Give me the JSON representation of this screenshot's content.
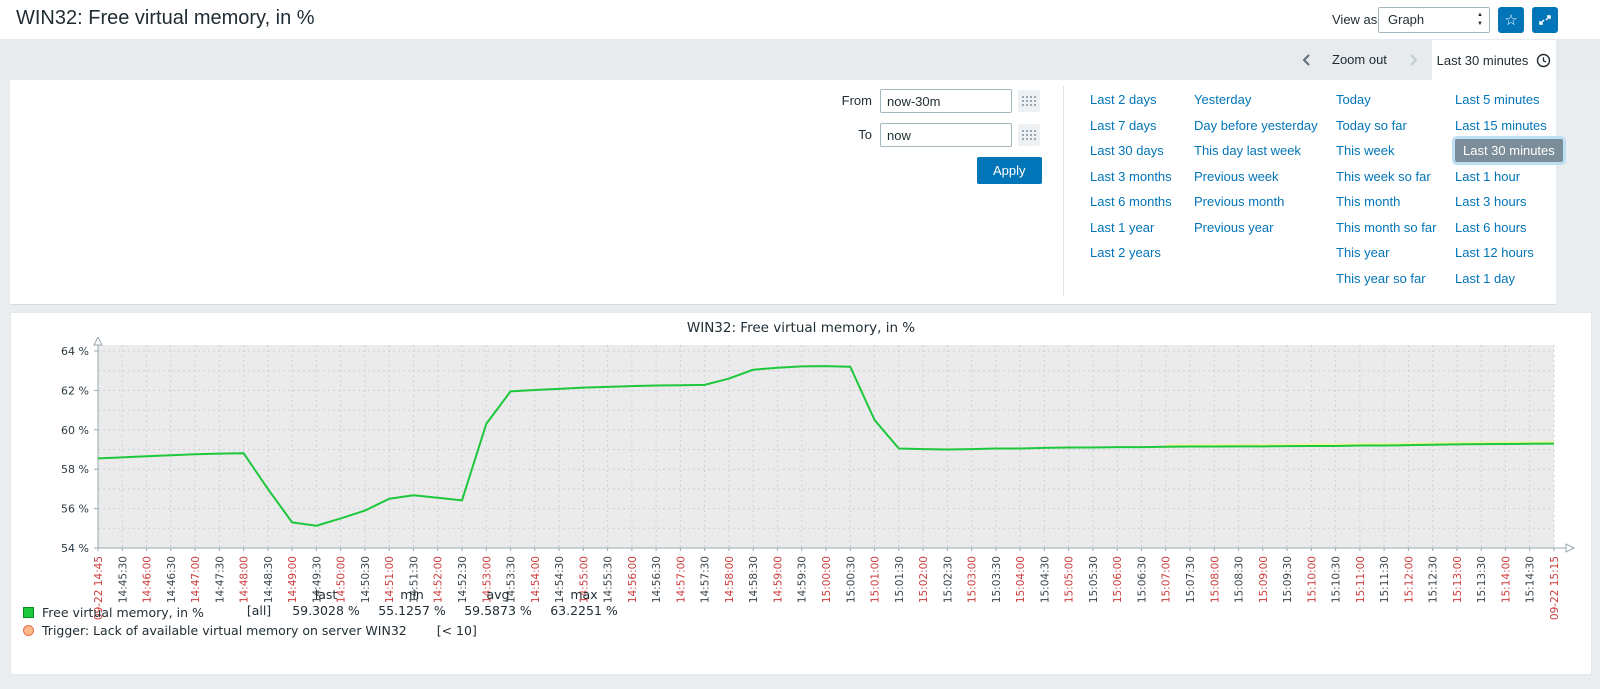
{
  "theme": {
    "accent": "#0275b8",
    "selected_range_bg": "#7a8d98"
  },
  "header": {
    "title": "WIN32: Free virtual memory, in %",
    "view_as_label": "View as",
    "view_as_value": "Graph"
  },
  "timebar": {
    "zoom_out_label": "Zoom out",
    "range_label": "Last 30 minutes"
  },
  "filter": {
    "from_label": "From",
    "from_value": "now-30m",
    "to_label": "To",
    "to_value": "now",
    "apply_label": "Apply",
    "selected": "Last 30 minutes",
    "columns": [
      [
        "Last 2 days",
        "Last 7 days",
        "Last 30 days",
        "Last 3 months",
        "Last 6 months",
        "Last 1 year",
        "Last 2 years"
      ],
      [
        "Yesterday",
        "Day before yesterday",
        "This day last week",
        "Previous week",
        "Previous month",
        "Previous year"
      ],
      [
        "Today",
        "Today so far",
        "This week",
        "This week so far",
        "This month",
        "This month so far",
        "This year",
        "This year so far"
      ],
      [
        "Last 5 minutes",
        "Last 15 minutes",
        "Last 30 minutes",
        "Last 1 hour",
        "Last 3 hours",
        "Last 6 hours",
        "Last 12 hours",
        "Last 1 day"
      ]
    ]
  },
  "chart_data": {
    "type": "line",
    "title": "WIN32: Free virtual memory, in %",
    "ylabel": "",
    "xlabel": "",
    "ylim": [
      54,
      64
    ],
    "yticks": [
      54,
      56,
      58,
      60,
      62,
      64
    ],
    "ytick_suffix": " %",
    "grid": true,
    "x_ticks": [
      "09-22 14:45",
      "14:45:30",
      "14:46:00",
      "14:46:30",
      "14:47:00",
      "14:47:30",
      "14:48:00",
      "14:48:30",
      "14:49:00",
      "14:49:30",
      "14:50:00",
      "14:50:30",
      "14:51:00",
      "14:51:30",
      "14:52:00",
      "14:52:30",
      "14:53:00",
      "14:53:30",
      "14:54:00",
      "14:54:30",
      "14:55:00",
      "14:55:30",
      "14:56:00",
      "14:56:30",
      "14:57:00",
      "14:57:30",
      "14:58:00",
      "14:58:30",
      "14:59:00",
      "14:59:30",
      "15:00:00",
      "15:00:30",
      "15:01:00",
      "15:01:30",
      "15:02:00",
      "15:02:30",
      "15:03:00",
      "15:03:30",
      "15:04:00",
      "15:04:30",
      "15:05:00",
      "15:05:30",
      "15:06:00",
      "15:06:30",
      "15:07:00",
      "15:07:30",
      "15:08:00",
      "15:08:30",
      "15:09:00",
      "15:09:30",
      "15:10:00",
      "15:10:30",
      "15:11:00",
      "15:11:30",
      "15:12:00",
      "15:12:30",
      "15:13:00",
      "15:13:30",
      "15:14:00",
      "15:14:30",
      "09-22 15:15"
    ],
    "series": [
      {
        "name": "Free virtual memory, in %",
        "color": "#1ec83c",
        "values": [
          58.55,
          58.6,
          58.66,
          58.71,
          58.76,
          58.79,
          58.81,
          57.0,
          55.3,
          55.13,
          55.5,
          55.9,
          56.5,
          56.68,
          56.55,
          56.42,
          60.3,
          61.95,
          62.02,
          62.08,
          62.14,
          62.18,
          62.22,
          62.25,
          62.26,
          62.28,
          62.6,
          63.05,
          63.15,
          63.22,
          63.23,
          63.2,
          60.5,
          59.05,
          59.02,
          59.0,
          59.02,
          59.05,
          59.05,
          59.08,
          59.1,
          59.1,
          59.12,
          59.12,
          59.14,
          59.15,
          59.15,
          59.16,
          59.16,
          59.17,
          59.18,
          59.18,
          59.2,
          59.2,
          59.22,
          59.24,
          59.26,
          59.27,
          59.28,
          59.29,
          59.3
        ]
      }
    ],
    "max_band": {
      "start_index": 44,
      "offset": 0.09,
      "color": "#eef59c"
    },
    "colors": {
      "plot_bg": "#ebebeb",
      "grid": "#c9d3da",
      "axis": "#9aa8af",
      "tick_major": "#cc3b3b",
      "tick_minor": "#3a444c",
      "ylabel_color": "#2b3a42",
      "trigger_fill": "#fdb88a",
      "trigger_border": "#e1704f",
      "swatch_border": "#0a8a20"
    },
    "legend": {
      "name": "Free virtual memory, in %",
      "scope": "[all]",
      "stats_headers": [
        "last",
        "min",
        "avg",
        "max"
      ],
      "stats_values": [
        "59.3028 %",
        "55.1257 %",
        "59.5873 %",
        "63.2251 %"
      ]
    },
    "trigger": {
      "label": "Trigger: Lack of available virtual memory on server WIN32",
      "condition": "[< 10]"
    }
  }
}
